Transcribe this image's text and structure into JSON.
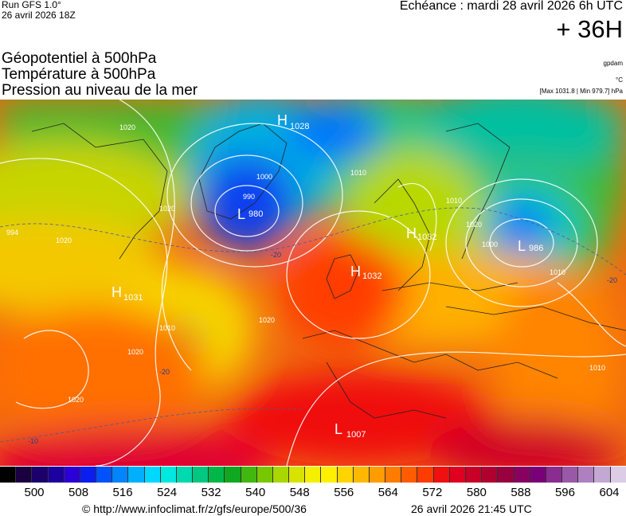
{
  "header": {
    "run_label": "Run GFS 1.0°",
    "run_date": "26 avril 2026 18Z",
    "echeance": "Echéance : mardi 28 avril 2026 6h UTC",
    "offset": "+ 36H",
    "layer_1": "Géopotentiel à 500hPa",
    "layer_2": "Température à 500hPa",
    "layer_3": "Pression au niveau de la mer",
    "unit_geopotential": "gpdam",
    "unit_temperature": "°C",
    "pressure_range": "[Max 1031.8 | Min 979.7] hPa"
  },
  "pressure_centers": [
    {
      "type": "H",
      "value": "1028"
    },
    {
      "type": "L",
      "value": "980"
    },
    {
      "type": "H",
      "value": "1032"
    },
    {
      "type": "H",
      "value": "1032"
    },
    {
      "type": "L",
      "value": "986"
    },
    {
      "type": "H",
      "value": "1031"
    },
    {
      "type": "L",
      "value": "1007"
    }
  ],
  "isobar_labels": [
    "1020",
    "1010",
    "1000",
    "990",
    "1020",
    "1020",
    "1010",
    "1020",
    "1020",
    "1010",
    "994",
    "1020",
    "1010",
    "1020",
    "1010",
    "1000",
    "1010"
  ],
  "temperature_labels": [
    "-20",
    "-20",
    "-20",
    "-10"
  ],
  "colorbar": {
    "labels": [
      "500",
      "508",
      "516",
      "524",
      "532",
      "540",
      "548",
      "556",
      "564",
      "572",
      "580",
      "588",
      "596",
      "604"
    ],
    "colors": [
      "#000000",
      "#1a0040",
      "#1b006b",
      "#1d00a0",
      "#2a00d6",
      "#0a1ef0",
      "#0052ff",
      "#0084ff",
      "#00b0ff",
      "#00d8ff",
      "#00e8e0",
      "#00d8b0",
      "#00c880",
      "#00b848",
      "#10a820",
      "#40b810",
      "#78c800",
      "#a8d800",
      "#d8e400",
      "#f4f000",
      "#fff000",
      "#ffd400",
      "#ffb800",
      "#ff9c00",
      "#ff7c00",
      "#ff5c00",
      "#ff3c00",
      "#f01010",
      "#e00020",
      "#c80028",
      "#b00030",
      "#980040",
      "#880060",
      "#7a0078",
      "#8a2c90",
      "#9a58a8",
      "#ae80c0",
      "#c4a8d4",
      "#dccce6"
    ]
  },
  "footer": {
    "url": "© http://www.infoclimat.fr/z/gfs/europe/500/36",
    "date": "26 avril 2026 21:45 UTC"
  }
}
